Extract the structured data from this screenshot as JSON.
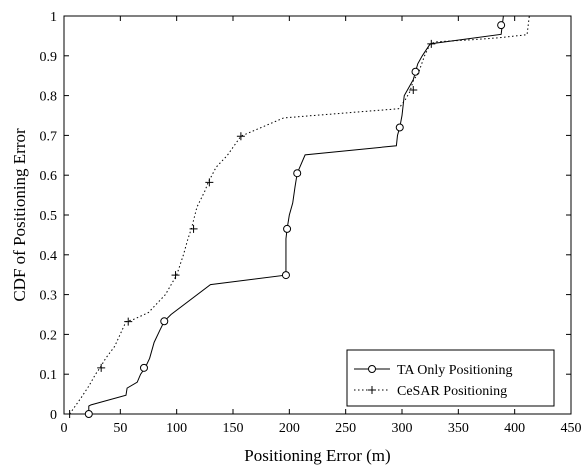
{
  "chart_data": {
    "type": "line",
    "title": "",
    "xlabel": "Positioning Error (m)",
    "ylabel": "CDF of Positioning Error",
    "xlim": [
      0,
      450
    ],
    "ylim": [
      0,
      1
    ],
    "xticks": [
      0,
      50,
      100,
      150,
      200,
      250,
      300,
      350,
      400,
      450
    ],
    "yticks": [
      0,
      0.1,
      0.2,
      0.3,
      0.4,
      0.5,
      0.6,
      0.7,
      0.8,
      0.9,
      1
    ],
    "xtick_labels": [
      "0",
      "50",
      "100",
      "150",
      "200",
      "250",
      "300",
      "350",
      "400",
      "450"
    ],
    "ytick_labels": [
      "0",
      "0.1",
      "0.2",
      "0.3",
      "0.4",
      "0.5",
      "0.6",
      "0.7",
      "0.8",
      "0.9",
      "1"
    ],
    "grid": false,
    "legend_position": "bottom-right",
    "series": [
      {
        "name": "TA Only Positioning",
        "line_style": "solid",
        "marker": "circle",
        "color": "#000000",
        "x": [
          22,
          22,
          24,
          55,
          56,
          65,
          68,
          72,
          76,
          78,
          80,
          85,
          89,
          95,
          130,
          197,
          197,
          198,
          200,
          203,
          205,
          207,
          214,
          295,
          296,
          298,
          300,
          302,
          310,
          312,
          314,
          318,
          325,
          388,
          389,
          390,
          413
        ],
        "y": [
          0.0,
          0.02,
          0.023,
          0.047,
          0.065,
          0.08,
          0.1,
          0.116,
          0.14,
          0.16,
          0.18,
          0.21,
          0.233,
          0.25,
          0.325,
          0.349,
          0.44,
          0.465,
          0.5,
          0.53,
          0.57,
          0.605,
          0.651,
          0.674,
          0.7,
          0.72,
          0.75,
          0.8,
          0.84,
          0.86,
          0.88,
          0.9,
          0.93,
          0.954,
          0.977,
          1.0,
          1.0
        ],
        "marker_x": [
          22,
          71,
          89,
          197,
          198,
          207,
          298,
          312,
          388
        ],
        "marker_y": [
          0.0,
          0.116,
          0.233,
          0.349,
          0.465,
          0.605,
          0.72,
          0.86,
          0.977
        ]
      },
      {
        "name": "CeSAR Positioning",
        "line_style": "dotted",
        "marker": "plus",
        "color": "#000000",
        "x": [
          5,
          15,
          22,
          28,
          32,
          37,
          45,
          55,
          62,
          75,
          90,
          100,
          106,
          110,
          113,
          118,
          125,
          128,
          135,
          145,
          150,
          157,
          195,
          297,
          303,
          307,
          310,
          315,
          320,
          325,
          330,
          360,
          385,
          411,
          413
        ],
        "y": [
          0.0,
          0.04,
          0.07,
          0.1,
          0.116,
          0.14,
          0.17,
          0.232,
          0.238,
          0.255,
          0.3,
          0.349,
          0.4,
          0.44,
          0.465,
          0.52,
          0.56,
          0.582,
          0.62,
          0.65,
          0.67,
          0.698,
          0.744,
          0.767,
          0.79,
          0.81,
          0.837,
          0.86,
          0.9,
          0.93,
          0.935,
          0.94,
          0.945,
          0.953,
          1.0
        ],
        "marker_x": [
          5,
          33,
          57,
          99,
          115,
          129,
          157,
          310,
          326
        ],
        "marker_y": [
          0.0,
          0.116,
          0.232,
          0.349,
          0.465,
          0.582,
          0.698,
          0.814,
          0.93
        ]
      }
    ]
  }
}
